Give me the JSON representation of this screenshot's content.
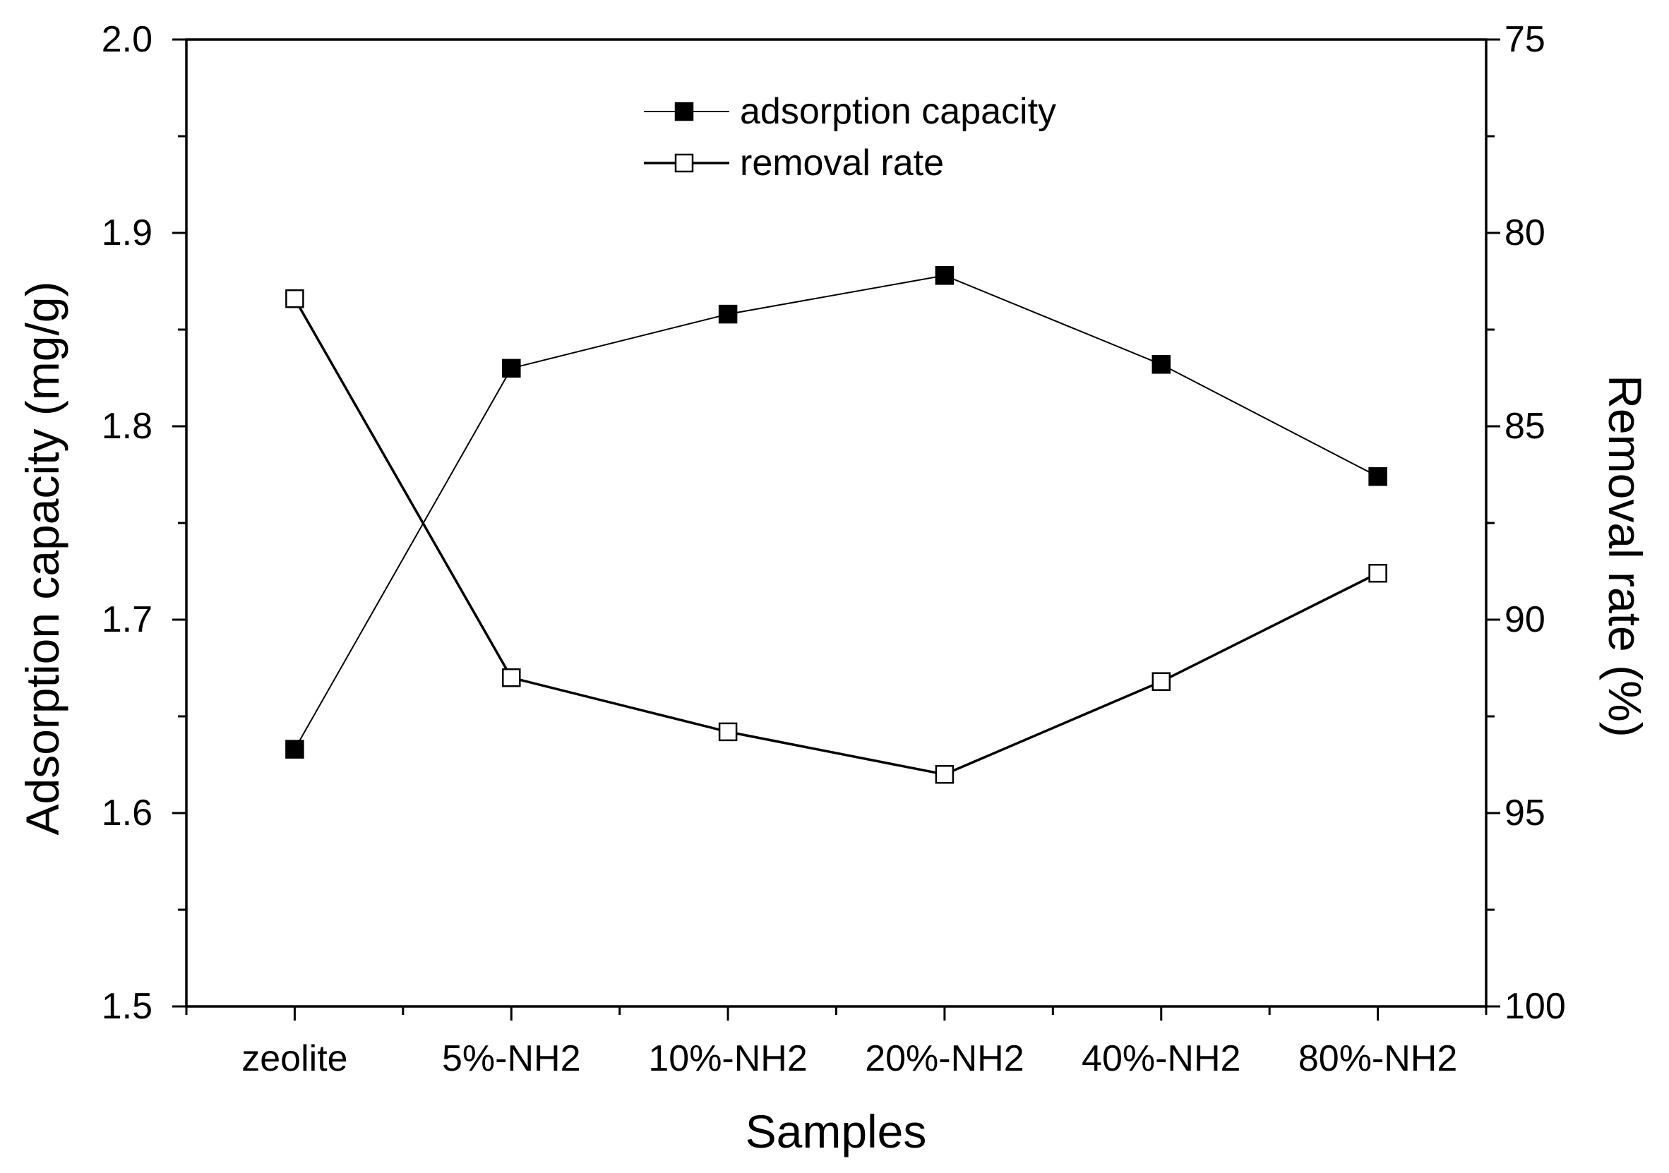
{
  "chart_data": {
    "type": "line",
    "categories": [
      "zeolite",
      "5%-NH2",
      "10%-NH2",
      "20%-NH2",
      "40%-NH2",
      "80%-NH2"
    ],
    "xlabel": "Samples",
    "ylabel": "Adsorption capacity (mg/g)",
    "ylim": [
      1.5,
      2.0
    ],
    "yticks": [
      "1.5",
      "1.6",
      "1.7",
      "1.8",
      "1.9",
      "2.0"
    ],
    "y2label": "Removal rate (%)",
    "y2lim": [
      75,
      100
    ],
    "y2_inverted": true,
    "y2ticks": [
      "75",
      "80",
      "85",
      "90",
      "95",
      "100"
    ],
    "grid": false,
    "legend": "top-center",
    "series": [
      {
        "name": "adsorption capacity",
        "axis": "left",
        "marker": "filled-square",
        "color": "#000000",
        "values": [
          1.633,
          1.83,
          1.858,
          1.878,
          1.832,
          1.774
        ]
      },
      {
        "name": "removal rate",
        "axis": "right",
        "marker": "open-square",
        "color": "#000000",
        "values": [
          81.7,
          91.5,
          92.9,
          94.0,
          91.6,
          88.8
        ]
      }
    ]
  }
}
